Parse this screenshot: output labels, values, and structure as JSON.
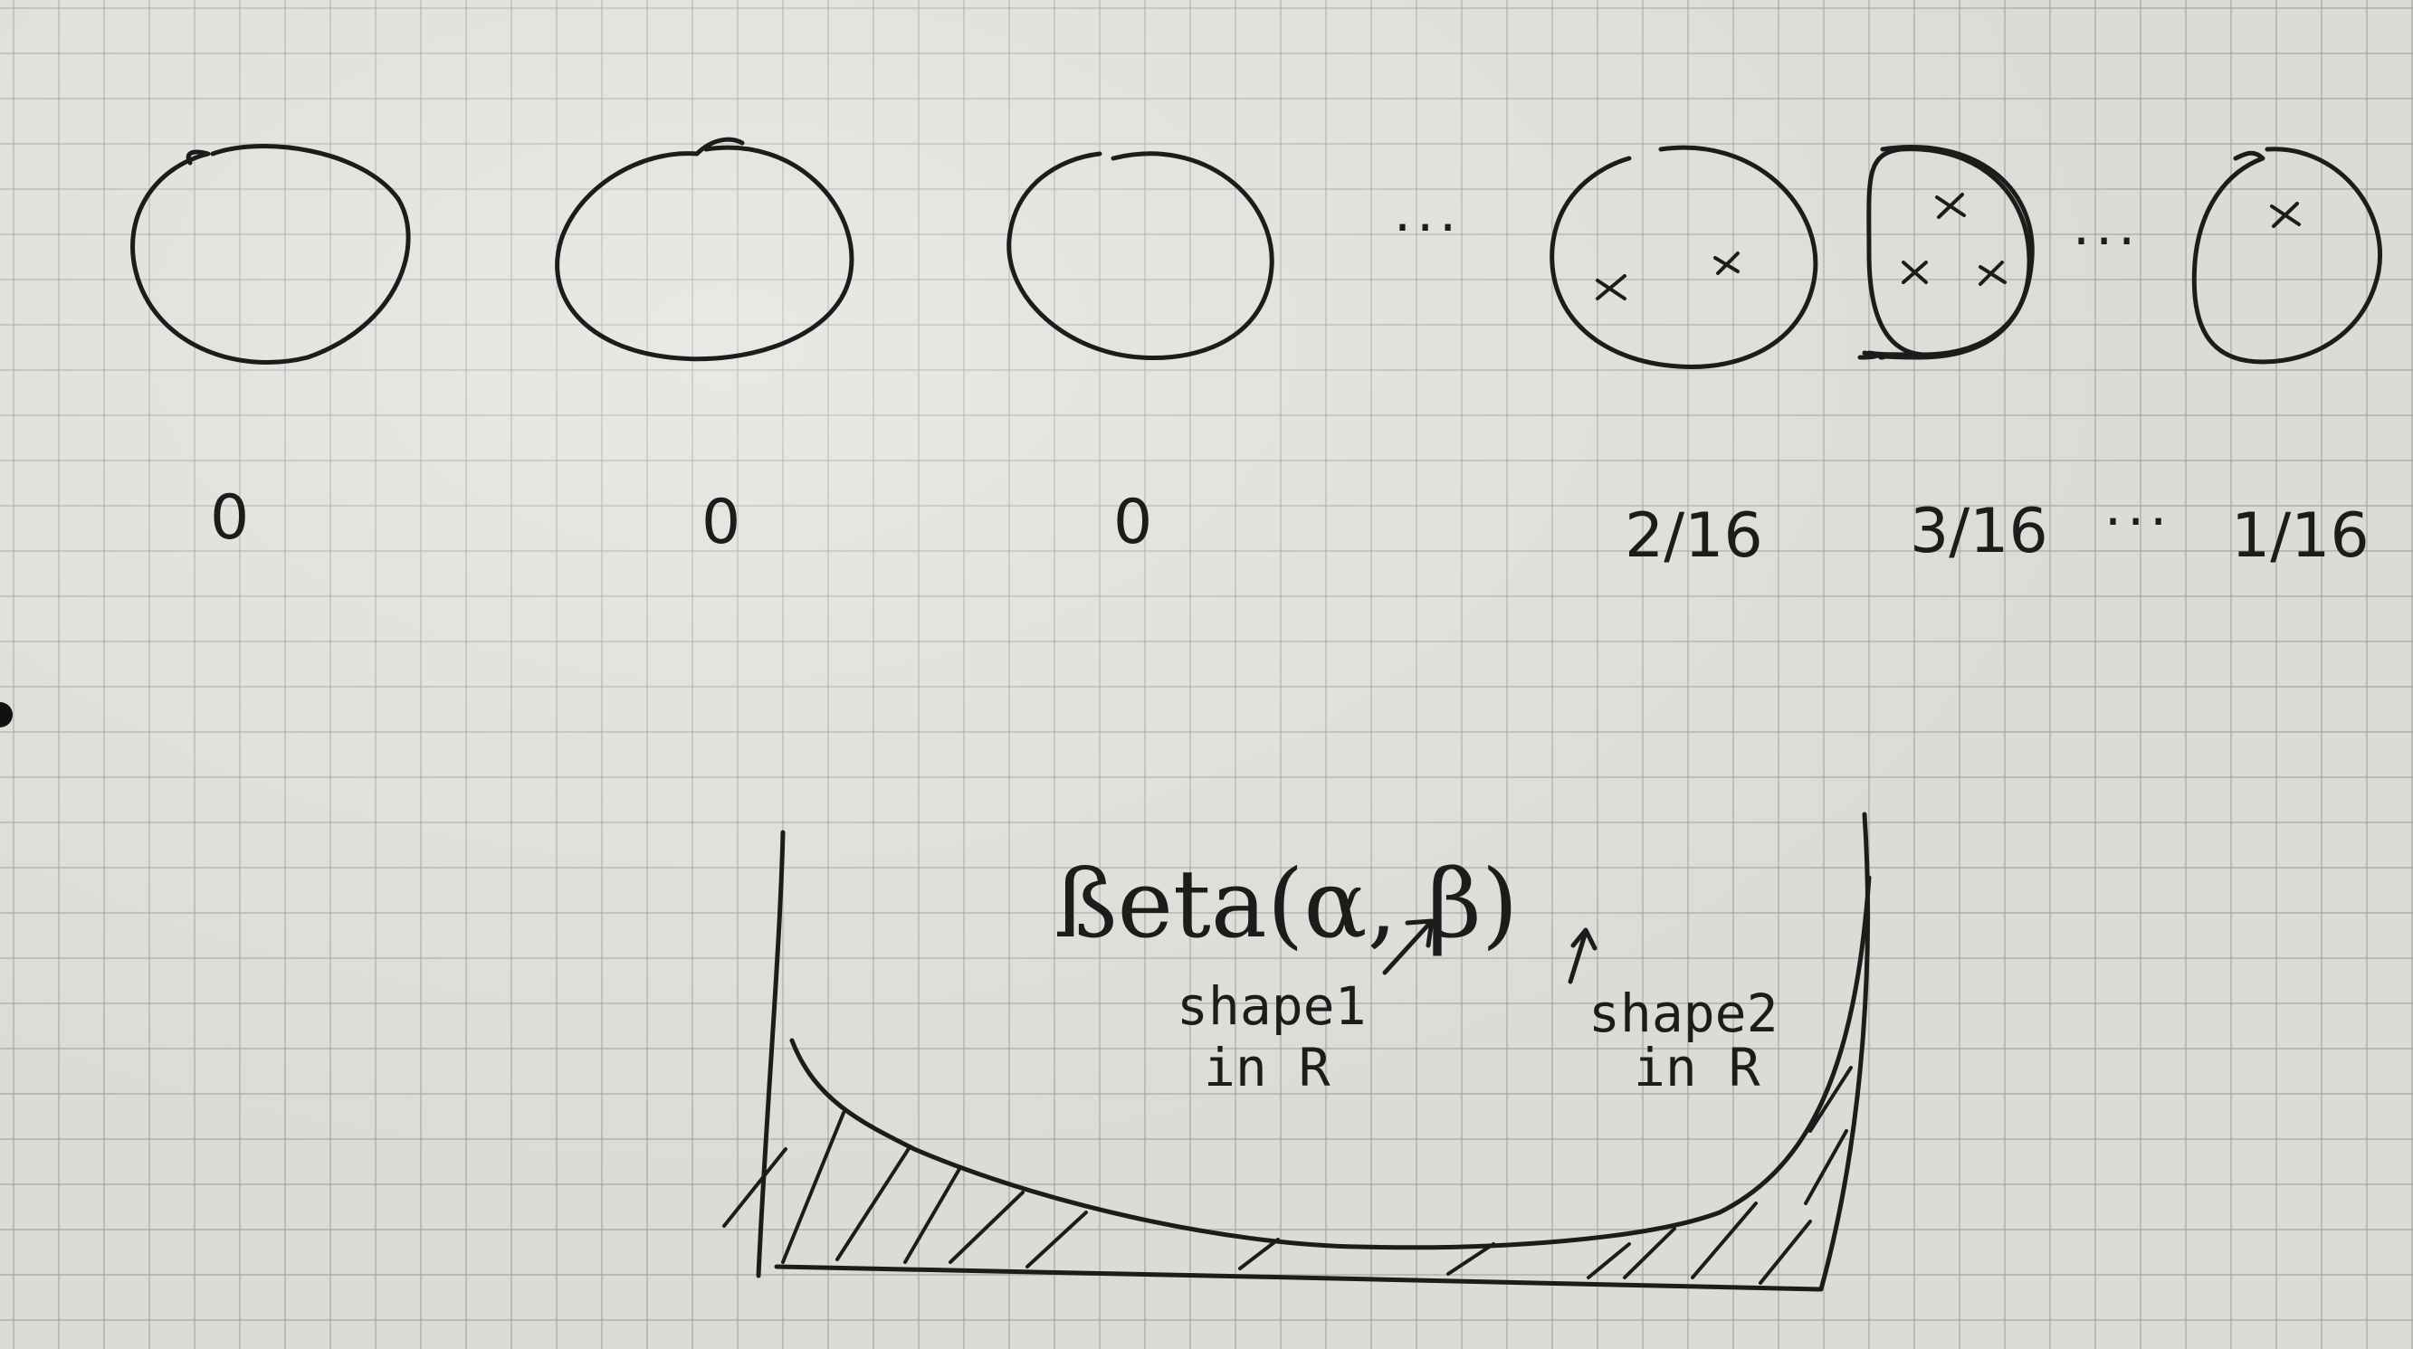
{
  "sketch": {
    "dot_separators": [
      "...",
      "...",
      "..."
    ],
    "probabilities": [
      "0",
      "0",
      "0",
      "2/16",
      "3/16",
      "...",
      "1/16"
    ],
    "samples": [
      {
        "cross_marks": 0
      },
      {
        "cross_marks": 0
      },
      {
        "cross_marks": 0
      },
      {
        "cross_marks": 2
      },
      {
        "cross_marks": 3
      },
      {
        "cross_marks": 1
      }
    ],
    "formula": "ßeta(α, β)",
    "annotations": [
      {
        "line1": "shape1",
        "line2": "in R"
      },
      {
        "line1": "shape2",
        "line2": "in R"
      }
    ],
    "plot": {
      "type": "u-shaped density curve",
      "tails_hatched": true
    }
  }
}
